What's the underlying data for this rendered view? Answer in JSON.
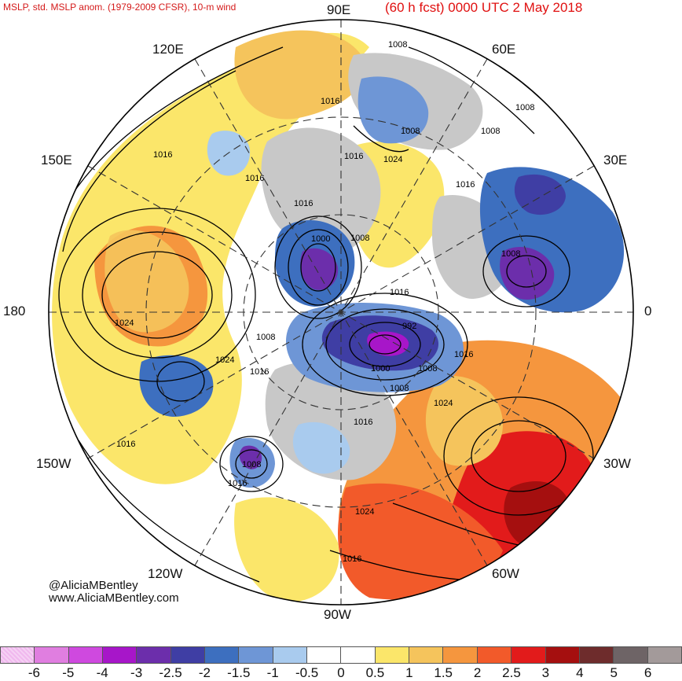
{
  "header": {
    "left_title": "MSLP, std. MSLP anom. (1979-2009 CFSR), 10-m wind",
    "right_title": "(60 h fcst) 0000 UTC 2 May 2018"
  },
  "longitude_labels": {
    "lon_90e": "90E",
    "lon_60e": "60E",
    "lon_120e": "120E",
    "lon_30e": "30E",
    "lon_150e": "150E",
    "lon_180": "180",
    "lon_0": "0",
    "lon_150w": "150W",
    "lon_30w": "30W",
    "lon_120w": "120W",
    "lon_60w": "60W",
    "lon_90w": "90W"
  },
  "isobar_labels": [
    "1008",
    "1008",
    "1016",
    "1008",
    "1024",
    "1016",
    "1016",
    "1008",
    "1016",
    "1016",
    "1000",
    "1008",
    "1016",
    "1024",
    "1008",
    "992",
    "1016",
    "1008",
    "1000",
    "1008",
    "1016",
    "1024",
    "1024",
    "1016",
    "1016",
    "1008",
    "1016",
    "1008",
    "1016",
    "1024",
    "1016"
  ],
  "credits": {
    "handle": "@AliciaMBentley",
    "website": "www.AliciaMBentley.com"
  },
  "colorbar": {
    "colors": [
      "#f0b8ee",
      "#e07ee0",
      "#cf49df",
      "#a716c9",
      "#6c2eab",
      "#3f3ea4",
      "#3d6fbf",
      "#6e96d6",
      "#a9cbee",
      "#ffffff",
      "#ffffff",
      "#fbe66a",
      "#f5c45c",
      "#f5963e",
      "#f25a2a",
      "#e21b1b",
      "#a50f0f",
      "#6e2c2c",
      "#6e6466",
      "#a39a9a"
    ],
    "labels": [
      "-6",
      "-5",
      "-4",
      "-3",
      "-2.5",
      "-2",
      "-1.5",
      "-1",
      "-0.5",
      "0",
      "0.5",
      "1",
      "1.5",
      "2",
      "2.5",
      "3",
      "4",
      "5",
      "6"
    ]
  }
}
